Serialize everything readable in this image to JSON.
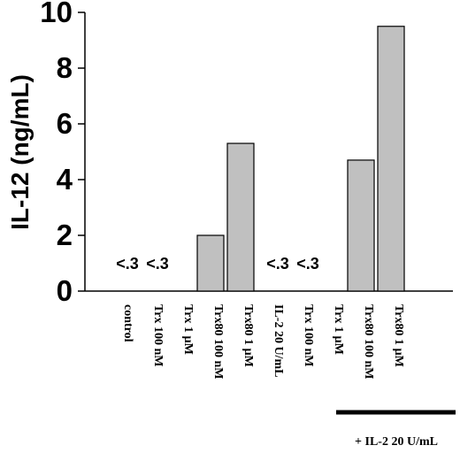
{
  "chart_data": {
    "type": "bar",
    "ylabel": "IL-12 (ng/mL)",
    "ylim": [
      0,
      10
    ],
    "yticks": [
      0,
      2,
      4,
      6,
      8,
      10
    ],
    "categories": [
      "control",
      "Trx 100 nM",
      "Trx 1 µM",
      "Trx80 100 nM",
      "Trx80 1 µM",
      "IL-2 20 U/mL",
      "Trx 100 nM",
      "Trx 1 µM",
      "Trx80 100 nM",
      "Trx80 1 µM"
    ],
    "values": [
      0,
      0,
      0,
      2.0,
      5.3,
      0,
      0,
      0,
      4.7,
      9.5
    ],
    "annotations": [
      {
        "category_index": 0,
        "text": "<.3"
      },
      {
        "category_index": 1,
        "text": "<.3"
      },
      {
        "category_index": 5,
        "text": "<.3"
      },
      {
        "category_index": 6,
        "text": "<.3"
      }
    ],
    "group_label": "+ IL-2 20 U/mL",
    "bar_color": "#c0c0c0",
    "grid": false
  }
}
